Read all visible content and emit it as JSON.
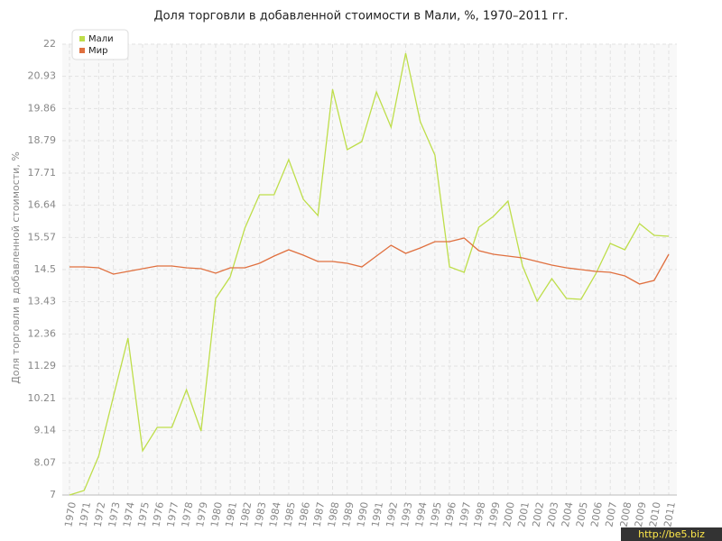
{
  "chart_data": {
    "type": "line",
    "title": "Доля торговли в добавленной стоимости в Мали, %, 1970–2011 гг.",
    "y_label": "Доля торговли в добавленной стоимости, %",
    "watermark": "http://be5.biz",
    "categories": [
      "1970",
      "1971",
      "1972",
      "1973",
      "1974",
      "1975",
      "1976",
      "1977",
      "1978",
      "1979",
      "1980",
      "1981",
      "1982",
      "1983",
      "1984",
      "1985",
      "1986",
      "1987",
      "1988",
      "1989",
      "1990",
      "1991",
      "1992",
      "1993",
      "1994",
      "1995",
      "1996",
      "1997",
      "1998",
      "1999",
      "2000",
      "2001",
      "2002",
      "2003",
      "2004",
      "2005",
      "2006",
      "2007",
      "2008",
      "2009",
      "2010",
      "2011"
    ],
    "series": [
      {
        "name": "Мали",
        "color": "#bede4a",
        "values": [
          7.0,
          7.15,
          8.3,
          10.27,
          12.22,
          8.47,
          9.25,
          9.25,
          10.5,
          9.13,
          13.54,
          14.26,
          15.88,
          16.99,
          16.99,
          18.16,
          16.84,
          16.3,
          20.5,
          18.49,
          18.76,
          20.41,
          19.24,
          21.7,
          19.42,
          18.31,
          14.59,
          14.41,
          15.91,
          16.27,
          16.78,
          14.62,
          13.45,
          14.2,
          13.54,
          13.51,
          14.35,
          15.37,
          15.16,
          16.03,
          15.64,
          15.61
        ]
      },
      {
        "name": "Мир",
        "color": "#e0703f",
        "values": [
          14.59,
          14.59,
          14.56,
          14.35,
          14.44,
          14.53,
          14.62,
          14.62,
          14.56,
          14.53,
          14.38,
          14.56,
          14.56,
          14.71,
          14.95,
          15.16,
          14.98,
          14.77,
          14.77,
          14.71,
          14.59,
          14.95,
          15.31,
          15.04,
          15.22,
          15.43,
          15.43,
          15.55,
          15.13,
          15.01,
          14.95,
          14.89,
          14.77,
          14.65,
          14.56,
          14.5,
          14.44,
          14.41,
          14.29,
          14.02,
          14.14,
          15.01
        ]
      }
    ],
    "ylim": [
      7,
      22
    ],
    "yticks": [
      7,
      8.07,
      9.14,
      10.21,
      11.29,
      12.36,
      13.43,
      14.5,
      15.57,
      16.64,
      17.71,
      18.79,
      19.86,
      20.93,
      22
    ],
    "grid": true,
    "legend": "top-left"
  }
}
